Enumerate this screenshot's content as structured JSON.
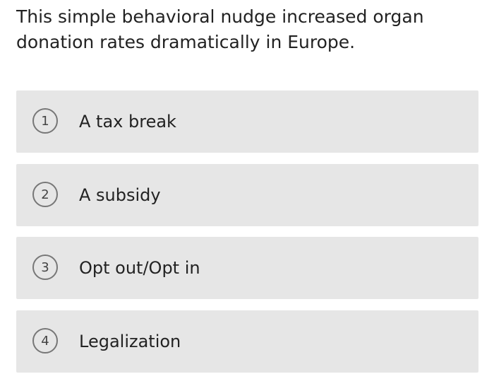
{
  "question": "This simple behavioral nudge increased organ donation rates dramatically in Europe.",
  "options": [
    {
      "number": "1",
      "label": "A tax break"
    },
    {
      "number": "2",
      "label": "A subsidy"
    },
    {
      "number": "3",
      "label": "Opt out/Opt in"
    },
    {
      "number": "4",
      "label": "Legalization"
    }
  ]
}
